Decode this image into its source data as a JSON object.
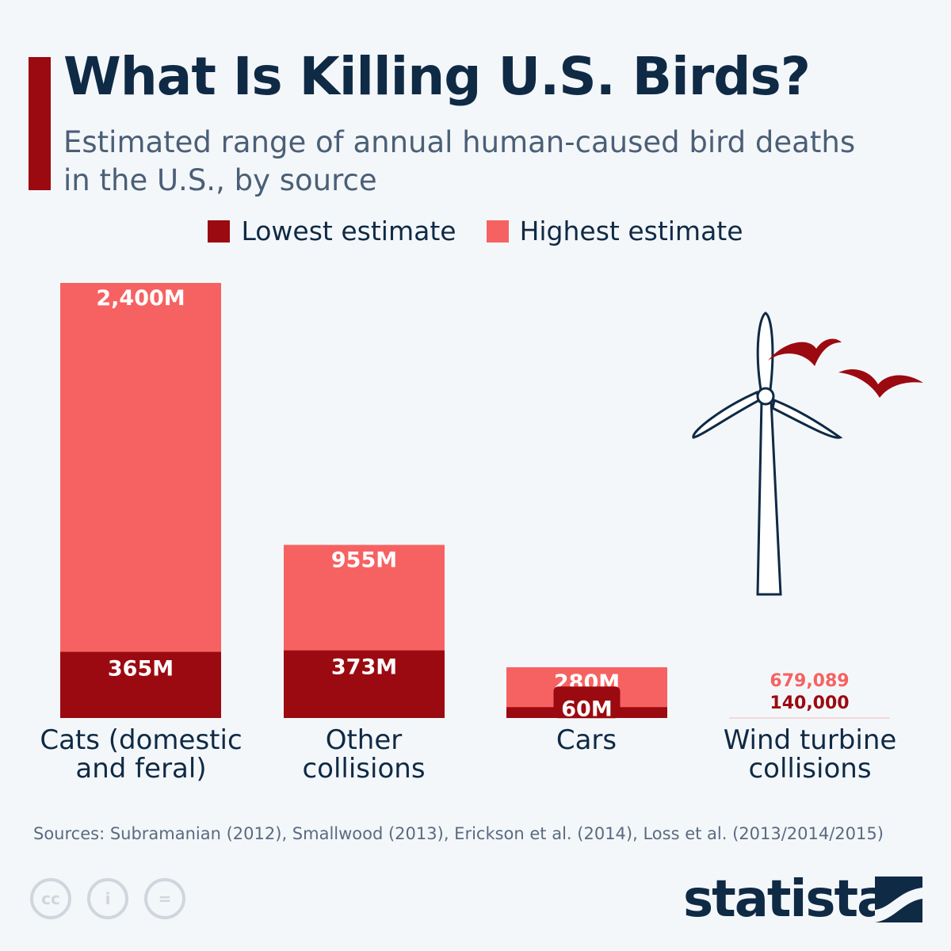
{
  "title": "What Is Killing U.S. Birds?",
  "subtitle": "Estimated range of annual human-caused bird deaths in the U.S., by source",
  "colors": {
    "lowest": "#9b0a10",
    "highest": "#f66262",
    "title": "#0f2a45"
  },
  "chart_data": {
    "type": "bar",
    "stacking": "overlapping",
    "categories": [
      "Cats (domestic and feral)",
      "Other collisions",
      "Cars",
      "Wind turbine collisions"
    ],
    "series": [
      {
        "name": "Lowest estimate",
        "values": [
          365,
          373,
          60,
          0.14
        ],
        "labels": [
          "365M",
          "373M",
          "60M",
          "140,000"
        ]
      },
      {
        "name": "Highest estimate",
        "values": [
          2400,
          955,
          280,
          0.679089
        ],
        "labels": [
          "2,400M",
          "955M",
          "280M",
          "679,089"
        ]
      }
    ],
    "unit": "millions",
    "legend": "top-center",
    "grid": false
  },
  "source": "Sources: Subramanian (2012), Smallwood (2013), Erickson et al. (2014), Loss et al. (2013/2014/2015)",
  "logo": "statista",
  "license_icons": [
    "cc-icon",
    "by-icon",
    "nd-icon"
  ]
}
